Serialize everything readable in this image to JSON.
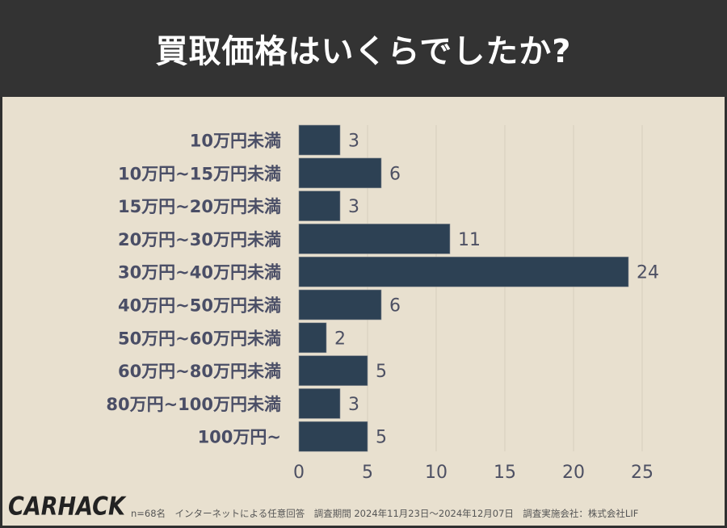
{
  "header": {
    "title": "買取価格はいくらでしたか?"
  },
  "chart_data": {
    "type": "bar",
    "orientation": "horizontal",
    "categories": [
      "10万円未満",
      "10万円~15万円未満",
      "15万円~20万円未満",
      "20万円~30万円未満",
      "30万円~40万円未満",
      "40万円~50万円未満",
      "50万円~60万円未満",
      "60万円~80万円未満",
      "80万円~100万円未満",
      "100万円~"
    ],
    "values": [
      3,
      6,
      3,
      11,
      24,
      6,
      2,
      5,
      3,
      5
    ],
    "xlim": [
      0,
      25
    ],
    "xticks": [
      0,
      5,
      10,
      15,
      20,
      25
    ],
    "grid": true,
    "bar_color": "#2d4154",
    "data_labels": true
  },
  "footer": {
    "logo": "CARHACK",
    "note": "n=68名　インターネットによる任意回答　調査期間 2024年11月23日〜2024年12月07日　調査実施会社：株式会社LIF"
  }
}
